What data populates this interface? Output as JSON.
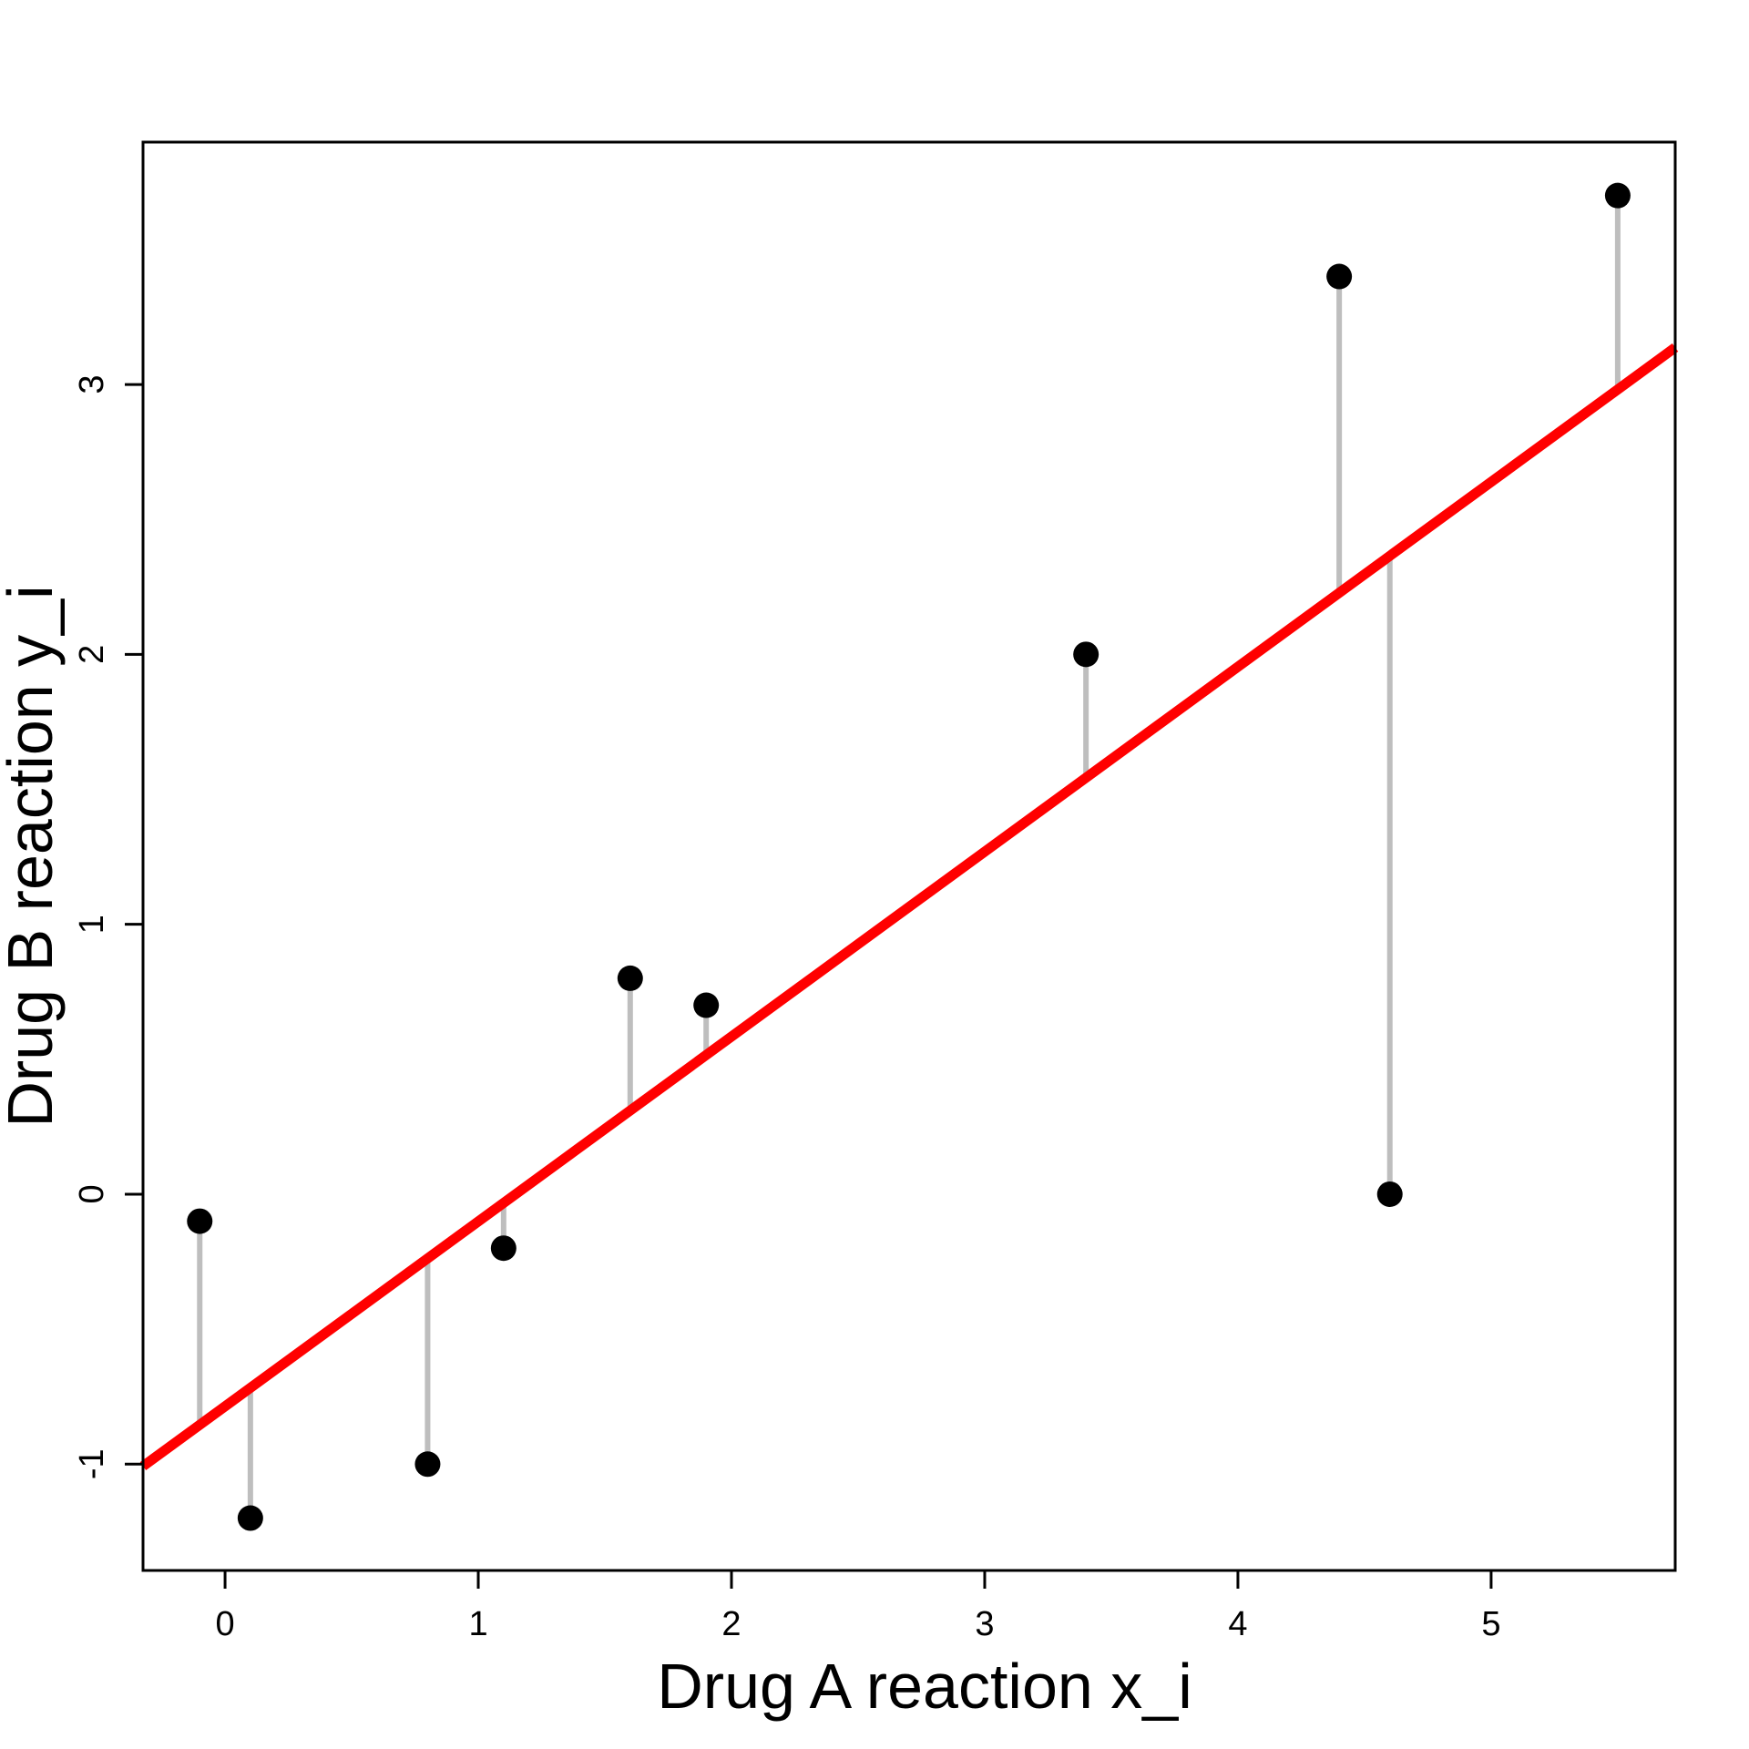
{
  "chart_data": {
    "type": "scatter",
    "title": "",
    "xlabel": "Drug A reaction x_i",
    "ylabel": "Drug B reaction y_i",
    "points": [
      {
        "x": -0.1,
        "y": -0.1
      },
      {
        "x": 0.1,
        "y": -1.2
      },
      {
        "x": 0.8,
        "y": -1.0
      },
      {
        "x": 1.1,
        "y": -0.2
      },
      {
        "x": 1.6,
        "y": 0.8
      },
      {
        "x": 1.9,
        "y": 0.7
      },
      {
        "x": 3.4,
        "y": 2.0
      },
      {
        "x": 4.4,
        "y": 3.4
      },
      {
        "x": 4.6,
        "y": 0.0
      },
      {
        "x": 5.5,
        "y": 3.7
      }
    ],
    "xticks": [
      0,
      1,
      2,
      3,
      4,
      5
    ],
    "yticks": [
      -1,
      0,
      1,
      2,
      3
    ],
    "xlim": [
      -0.324,
      5.727
    ],
    "ylim": [
      -1.394,
      3.898
    ],
    "grid": false,
    "legend": null,
    "regression_line": {
      "slope": 0.685,
      "intercept": -0.786,
      "color": "#FF0000"
    },
    "residuals_shown": true,
    "colors": {
      "point": "#000000",
      "residual": "#BEBEBE",
      "regression": "#FF0000",
      "axis": "#000000",
      "background": "#FFFFFF"
    }
  }
}
